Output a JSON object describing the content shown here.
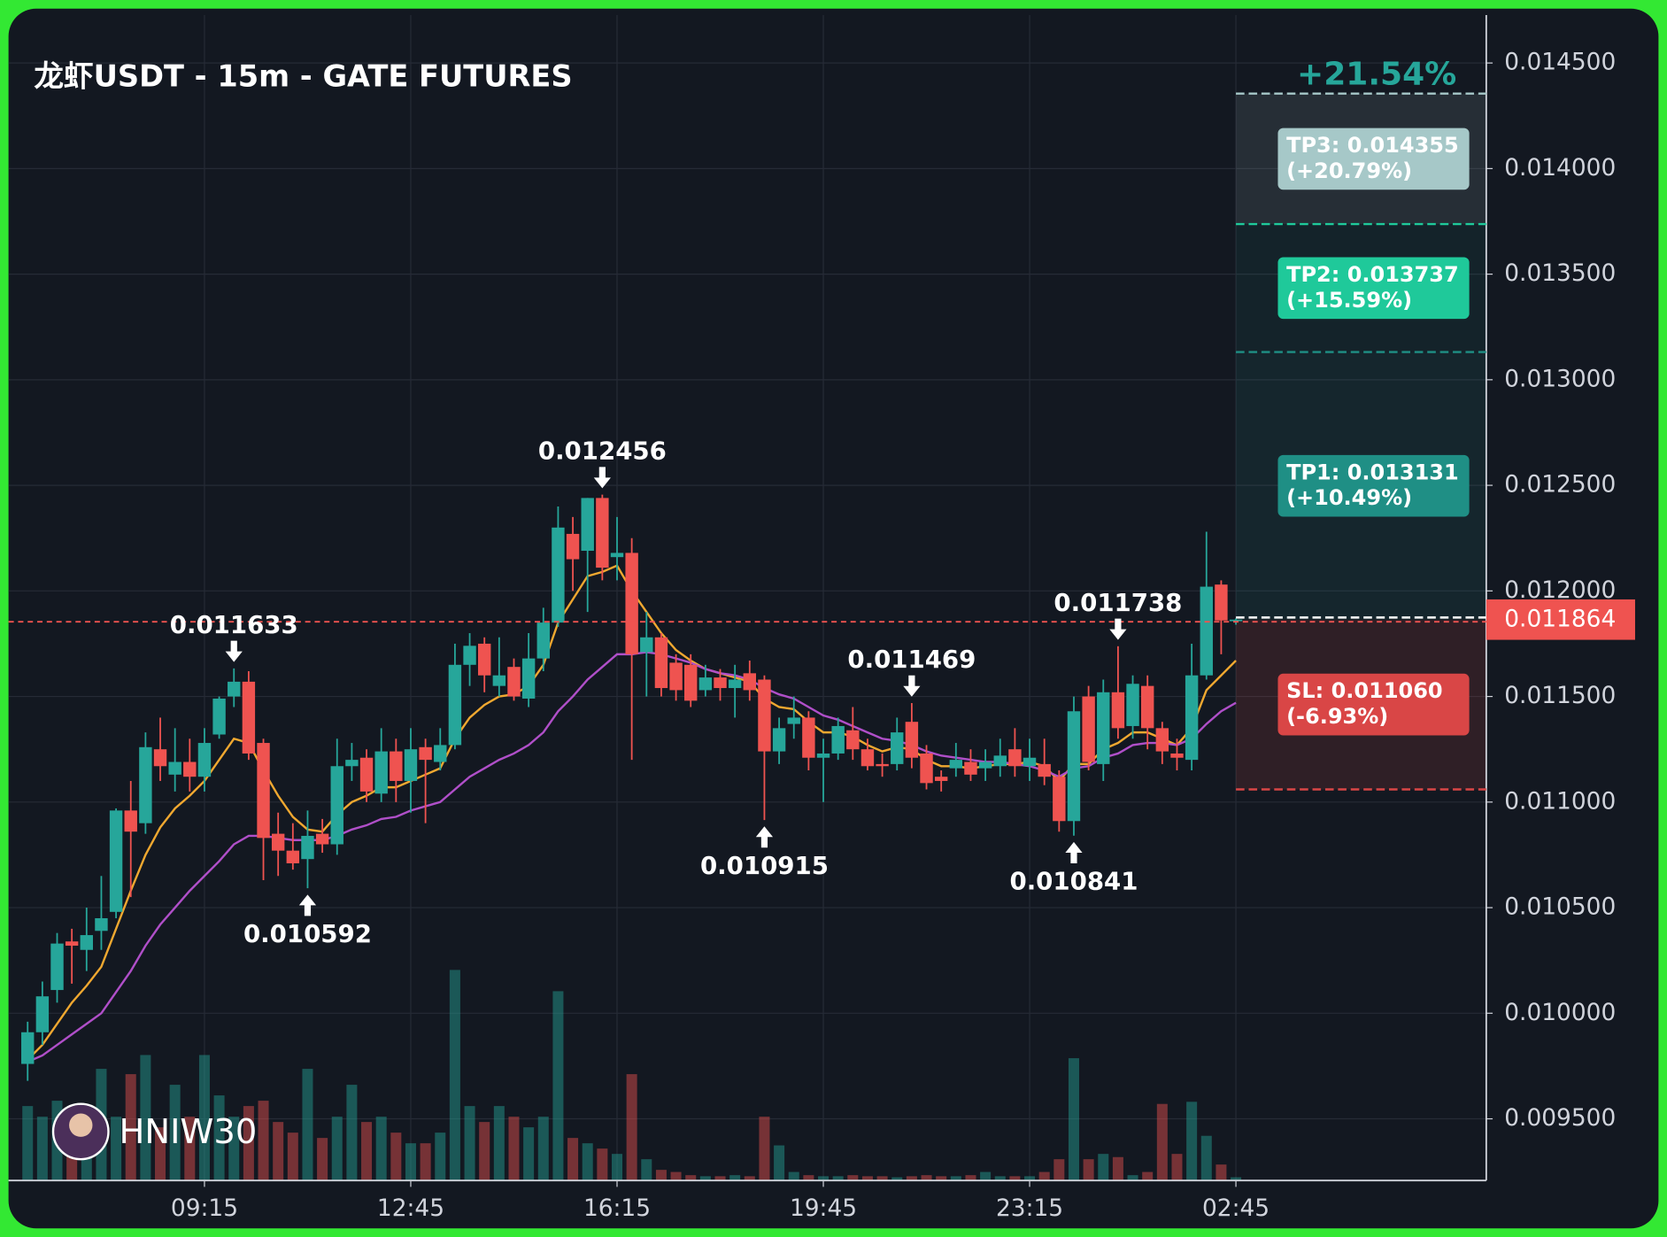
{
  "chart_data": {
    "type": "candlestick",
    "title": "龙虾USDT - 15m - GATE FUTURES",
    "categories": [
      null,
      null,
      null,
      null,
      null,
      null,
      null,
      null,
      null,
      null,
      null,
      null,
      "09:15",
      null,
      null,
      null,
      null,
      null,
      null,
      null,
      null,
      null,
      null,
      null,
      null,
      null,
      "12:45",
      null,
      null,
      null,
      null,
      null,
      null,
      null,
      null,
      null,
      null,
      null,
      null,
      null,
      "16:15",
      null,
      null,
      null,
      null,
      null,
      null,
      null,
      null,
      null,
      null,
      null,
      null,
      null,
      "19:45",
      null,
      null,
      null,
      null,
      null,
      null,
      null,
      null,
      null,
      null,
      null,
      null,
      null,
      "23:15",
      null,
      null,
      null,
      null,
      null,
      null,
      null,
      null,
      null,
      null,
      null,
      null,
      null,
      "02:45"
    ],
    "open": [
      0.00976,
      0.00991,
      0.01011,
      0.01034,
      0.0103,
      0.01039,
      0.01048,
      0.01096,
      0.0109,
      0.01125,
      0.01113,
      0.01119,
      0.01112,
      0.01132,
      0.0115,
      0.01157,
      0.01128,
      0.01085,
      0.01077,
      0.01073,
      0.01085,
      0.0108,
      0.01117,
      0.01121,
      0.01104,
      0.01124,
      0.0111,
      0.01126,
      0.01119,
      0.01127,
      0.01165,
      0.01175,
      0.01155,
      0.01164,
      0.01149,
      0.01168,
      0.01185,
      0.01227,
      0.01219,
      0.01244,
      0.01216,
      0.01218,
      0.01171,
      0.01178,
      0.01166,
      0.01165,
      0.01153,
      0.01159,
      0.01154,
      0.01161,
      0.01158,
      0.01124,
      0.01137,
      0.0114,
      0.01121,
      0.01123,
      0.01134,
      0.01125,
      0.01118,
      0.01118,
      0.01138,
      0.01123,
      0.01112,
      0.01116,
      0.01119,
      0.01116,
      0.01117,
      0.01125,
      0.01117,
      0.01118,
      0.01112,
      0.01091,
      0.0115,
      0.01118,
      0.01152,
      0.01136,
      0.01155,
      0.01135,
      0.01123,
      0.0112,
      0.0116,
      0.01203,
      0.01186
    ],
    "high": [
      0.00996,
      0.01015,
      0.01038,
      0.0104,
      0.0105,
      0.01065,
      0.01097,
      0.0111,
      0.01133,
      0.0114,
      0.01135,
      0.0113,
      0.01135,
      0.0115,
      0.011633,
      0.01162,
      0.0113,
      0.01095,
      0.0109,
      0.01096,
      0.01092,
      0.0113,
      0.01128,
      0.01125,
      0.01135,
      0.0113,
      0.01135,
      0.0113,
      0.01135,
      0.01175,
      0.0118,
      0.01178,
      0.01178,
      0.01168,
      0.0118,
      0.01192,
      0.0124,
      0.01235,
      0.01244,
      0.012456,
      0.01235,
      0.01225,
      0.0119,
      0.0118,
      0.0117,
      0.0117,
      0.01165,
      0.01163,
      0.01165,
      0.01167,
      0.0116,
      0.0114,
      0.0115,
      0.01143,
      0.0113,
      0.0114,
      0.01145,
      0.0113,
      0.01123,
      0.0114,
      0.011469,
      0.01127,
      0.01115,
      0.01128,
      0.01125,
      0.01125,
      0.0113,
      0.01135,
      0.0113,
      0.0113,
      0.01115,
      0.0115,
      0.01155,
      0.01158,
      0.011738,
      0.0116,
      0.0116,
      0.01138,
      0.0113,
      0.01175,
      0.01228,
      0.01205,
      0.01187
    ],
    "low": [
      0.00968,
      0.00985,
      0.01005,
      0.01014,
      0.0102,
      0.0103,
      0.01045,
      0.01055,
      0.01085,
      0.0111,
      0.01105,
      0.01105,
      0.01105,
      0.0113,
      0.01145,
      0.0112,
      0.01063,
      0.01065,
      0.01068,
      0.010592,
      0.01076,
      0.01075,
      0.0111,
      0.011,
      0.011,
      0.011,
      0.01095,
      0.0109,
      0.01115,
      0.01125,
      0.01155,
      0.01152,
      0.0115,
      0.01148,
      0.01145,
      0.01162,
      0.01183,
      0.012,
      0.0119,
      0.01205,
      0.01205,
      0.0112,
      0.0115,
      0.0115,
      0.01148,
      0.01145,
      0.0115,
      0.01148,
      0.0114,
      0.01148,
      0.010915,
      0.01118,
      0.0113,
      0.01115,
      0.011,
      0.0112,
      0.0112,
      0.01115,
      0.01112,
      0.01115,
      0.01116,
      0.01106,
      0.01105,
      0.01112,
      0.0111,
      0.0111,
      0.01112,
      0.01112,
      0.0111,
      0.01108,
      0.01086,
      0.010841,
      0.01115,
      0.0111,
      0.0113,
      0.0113,
      0.01125,
      0.01118,
      0.01115,
      0.01115,
      0.01158,
      0.0117,
      0.01184
    ],
    "close": [
      0.00991,
      0.01008,
      0.01033,
      0.01032,
      0.01037,
      0.01045,
      0.01096,
      0.01086,
      0.01126,
      0.01117,
      0.01119,
      0.01112,
      0.01128,
      0.01149,
      0.01157,
      0.01123,
      0.01083,
      0.01077,
      0.01071,
      0.01084,
      0.0108,
      0.01117,
      0.0112,
      0.01105,
      0.01124,
      0.0111,
      0.01125,
      0.0112,
      0.01127,
      0.01165,
      0.01174,
      0.0116,
      0.0116,
      0.0115,
      0.01168,
      0.01185,
      0.0123,
      0.01215,
      0.01244,
      0.01211,
      0.01218,
      0.0117,
      0.01178,
      0.01154,
      0.01153,
      0.01148,
      0.01159,
      0.01154,
      0.01158,
      0.01153,
      0.01124,
      0.01135,
      0.0114,
      0.01121,
      0.01123,
      0.01136,
      0.01125,
      0.01117,
      0.01117,
      0.01133,
      0.01121,
      0.01109,
      0.0111,
      0.0112,
      0.01113,
      0.01119,
      0.01122,
      0.01117,
      0.01121,
      0.01112,
      0.01091,
      0.01143,
      0.01119,
      0.01152,
      0.01135,
      0.01156,
      0.01135,
      0.01124,
      0.01121,
      0.0116,
      0.01202,
      0.01186,
      0.011864
    ],
    "volume": [
      70,
      60,
      75,
      40,
      60,
      105,
      60,
      100,
      118,
      50,
      90,
      60,
      118,
      80,
      60,
      70,
      75,
      55,
      45,
      105,
      40,
      60,
      90,
      55,
      60,
      45,
      35,
      35,
      45,
      198,
      70,
      55,
      70,
      60,
      50,
      60,
      178,
      40,
      35,
      30,
      25,
      100,
      20,
      10,
      8,
      5,
      4,
      4,
      5,
      4,
      60,
      33,
      8,
      5,
      4,
      4,
      5,
      4,
      4,
      3,
      4,
      5,
      4,
      4,
      5,
      8,
      4,
      4,
      4,
      8,
      20,
      115,
      20,
      25,
      22,
      5,
      8,
      72,
      25,
      74,
      42,
      15,
      3
    ],
    "ma_lines": [
      {
        "color": "#f0a830",
        "values": [
          0.00978,
          0.00985,
          0.00995,
          0.01005,
          0.01013,
          0.01022,
          0.0104,
          0.01058,
          0.01075,
          0.01088,
          0.01097,
          0.01103,
          0.0111,
          0.0112,
          0.0113,
          0.01128,
          0.01115,
          0.01103,
          0.01093,
          0.01087,
          0.01086,
          0.01094,
          0.011,
          0.01103,
          0.01107,
          0.01107,
          0.0111,
          0.01113,
          0.01116,
          0.0113,
          0.0114,
          0.01146,
          0.0115,
          0.01151,
          0.01155,
          0.01165,
          0.01185,
          0.01196,
          0.01207,
          0.01209,
          0.01212,
          0.012,
          0.0119,
          0.0118,
          0.01172,
          0.01167,
          0.01163,
          0.01161,
          0.01159,
          0.01157,
          0.01149,
          0.01145,
          0.01144,
          0.01138,
          0.01133,
          0.01133,
          0.01131,
          0.01127,
          0.01124,
          0.01126,
          0.01125,
          0.0112,
          0.01117,
          0.01117,
          0.01116,
          0.01117,
          0.01118,
          0.01118,
          0.01119,
          0.01117,
          0.0111,
          0.01118,
          0.01118,
          0.01125,
          0.01128,
          0.01133,
          0.01133,
          0.0113,
          0.01127,
          0.01135,
          0.01153,
          0.0116,
          0.01167
        ]
      },
      {
        "color": "#b04fc9",
        "values": [
          0.00977,
          0.0098,
          0.00985,
          0.0099,
          0.00995,
          0.01,
          0.0101,
          0.0102,
          0.01032,
          0.01042,
          0.0105,
          0.01058,
          0.01065,
          0.01072,
          0.0108,
          0.01084,
          0.01084,
          0.01083,
          0.01082,
          0.01082,
          0.01082,
          0.01084,
          0.01087,
          0.01089,
          0.01092,
          0.01093,
          0.01096,
          0.01098,
          0.011,
          0.01106,
          0.01112,
          0.01116,
          0.0112,
          0.01123,
          0.01127,
          0.01133,
          0.01143,
          0.0115,
          0.01158,
          0.01164,
          0.0117,
          0.0117,
          0.01171,
          0.0117,
          0.01168,
          0.01166,
          0.01163,
          0.01161,
          0.0116,
          0.01158,
          0.01154,
          0.01151,
          0.01149,
          0.01145,
          0.01141,
          0.01139,
          0.01136,
          0.01133,
          0.0113,
          0.01129,
          0.01127,
          0.01124,
          0.01122,
          0.01121,
          0.0112,
          0.01119,
          0.01119,
          0.01118,
          0.01117,
          0.01115,
          0.01112,
          0.01116,
          0.01117,
          0.01121,
          0.01123,
          0.01127,
          0.01128,
          0.01128,
          0.01127,
          0.0113,
          0.01137,
          0.01143,
          0.01147
        ]
      }
    ],
    "ylim": [
      0.009208,
      0.014727
    ],
    "yticks": [
      {
        "value": 0.0145,
        "label": "0.014500"
      },
      {
        "value": 0.014,
        "label": "0.014000"
      },
      {
        "value": 0.0135,
        "label": "0.013500"
      },
      {
        "value": 0.013,
        "label": "0.013000"
      },
      {
        "value": 0.0125,
        "label": "0.012500"
      },
      {
        "value": 0.012,
        "label": "0.012000"
      },
      {
        "value": 0.0115,
        "label": "0.011500"
      },
      {
        "value": 0.011,
        "label": "0.011000"
      },
      {
        "value": 0.0105,
        "label": "0.010500"
      },
      {
        "value": 0.01,
        "label": "0.010000"
      },
      {
        "value": 0.0095,
        "label": "0.009500"
      }
    ],
    "grid": true,
    "up_color": "#26a69a",
    "down_color": "#ef5350",
    "annotations": [
      {
        "x": 14,
        "value": 0.011633,
        "position": "above"
      },
      {
        "x": 19,
        "value": 0.010592,
        "position": "below"
      },
      {
        "x": 39,
        "value": 0.012456,
        "position": "above"
      },
      {
        "x": 50,
        "value": 0.010915,
        "position": "below"
      },
      {
        "x": 60,
        "value": 0.011469,
        "position": "above"
      },
      {
        "x": 71,
        "value": 0.010841,
        "position": "below"
      },
      {
        "x": 74,
        "value": 0.011738,
        "position": "above"
      }
    ],
    "last_price": 0.011864,
    "trade": {
      "header": "+21.54%",
      "targets": [
        {
          "price": 0.014355,
          "label": "TP3: 0.014355",
          "change": "(+20.79%)",
          "color": "#a6c8c8"
        },
        {
          "price": 0.013737,
          "label": "TP2: 0.013737",
          "change": "(+15.59%)",
          "color": "#1fc99a"
        },
        {
          "price": 0.013131,
          "label": "TP1: 0.013131",
          "change": "(+10.49%)",
          "color": "#1f8f85"
        }
      ],
      "stop": {
        "price": 0.01106,
        "label": "SL: 0.011060",
        "change": "(-6.93%)",
        "color": "#d94646"
      }
    },
    "watermark": "HNIW30"
  }
}
